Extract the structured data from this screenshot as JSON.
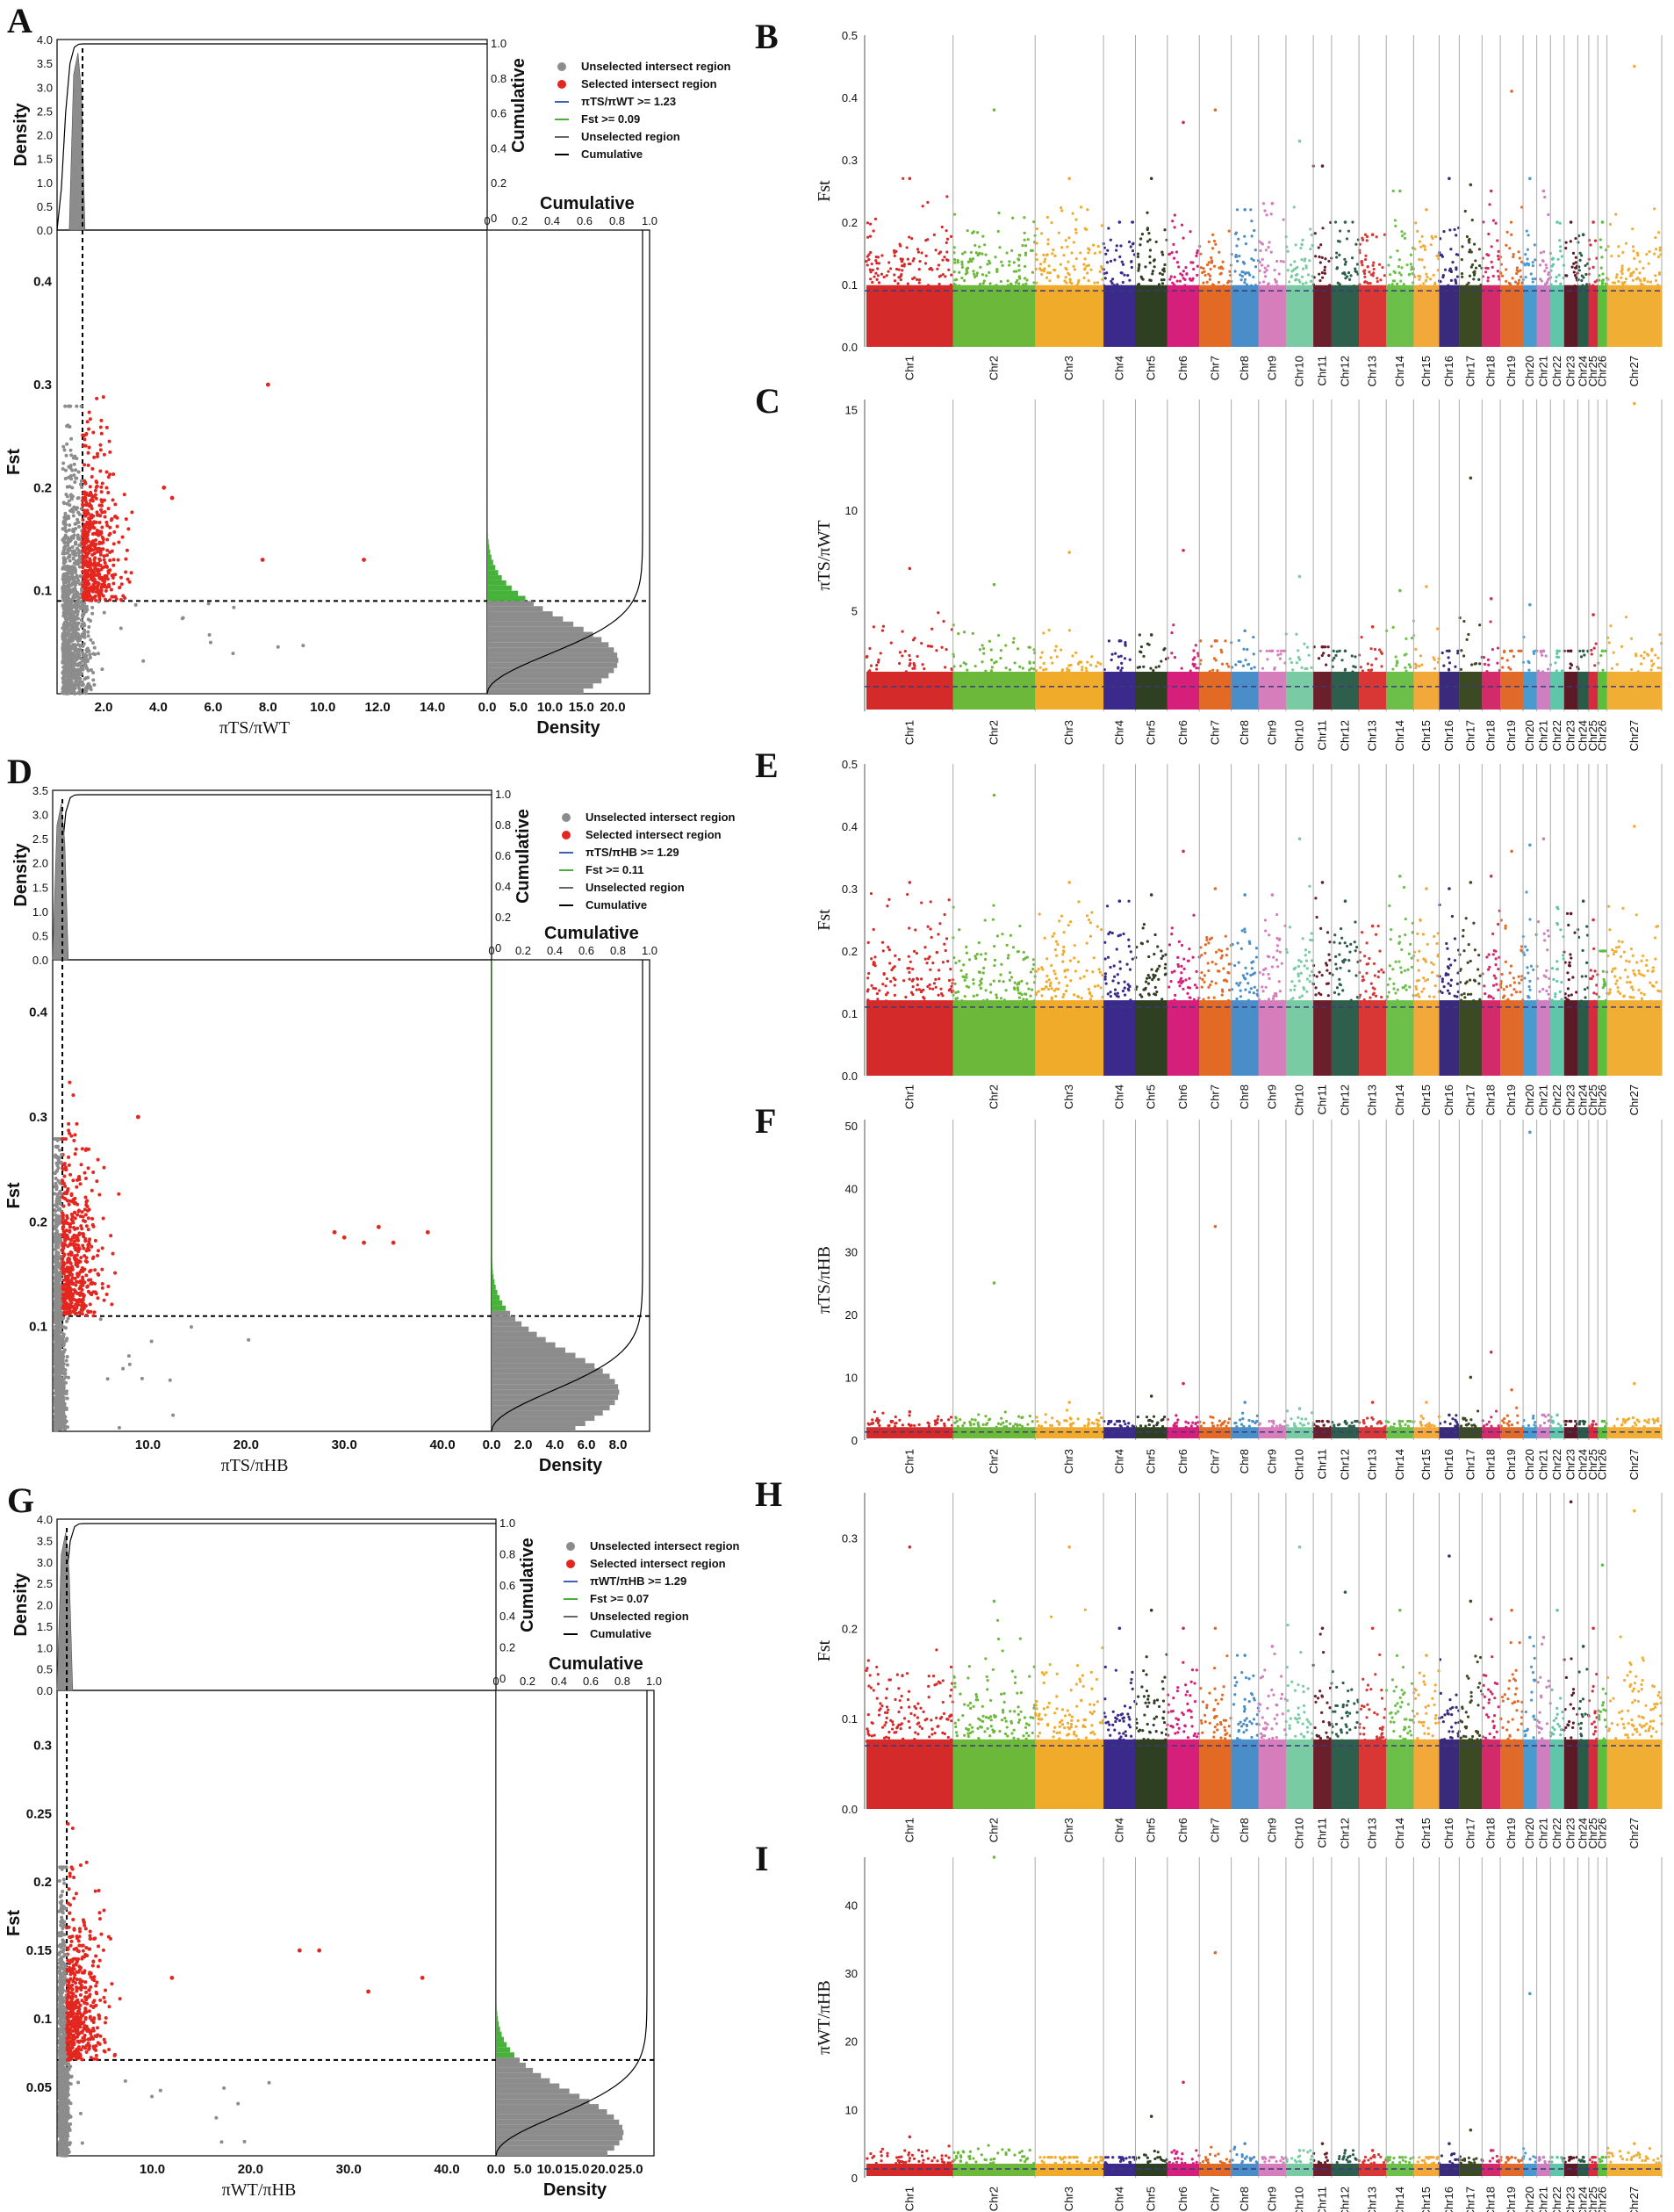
{
  "figure": {
    "panels_left": [
      {
        "letter": "A",
        "legend": [
          "Unselected intersect region",
          "Selected intersect region",
          "πTS/πWT >= 1.23",
          "Fst >= 0.09",
          "Unselected region",
          "Cumulative"
        ],
        "top_density_label": "Density",
        "top_density_ticks": [
          "4.0",
          "3.5",
          "3.0",
          "2.5",
          "2.0",
          "1.5",
          "1.0",
          "0.5",
          "0.0"
        ],
        "cumulative_label": "Cumulative",
        "cum_ticks": [
          "1.0",
          "0.8",
          "0.6",
          "0.4",
          "0.2",
          "0"
        ],
        "cum_x_label": "Cumulative",
        "cum_x_ticks": [
          "0",
          "0.2",
          "0.4",
          "0.6",
          "0.8",
          "1.0"
        ],
        "fst_label": "Fst",
        "fst_ticks": [
          "0.4",
          "0.3",
          "0.2",
          "0.1"
        ],
        "x_ticks": [
          "2.0",
          "4.0",
          "6.0",
          "8.0",
          "10.0",
          "12.0",
          "14.0"
        ],
        "x_label": "πTS/πWT",
        "density_x_label": "Density",
        "density_x_ticks": [
          "0.0",
          "5.0",
          "10.0",
          "15.0",
          "20.0"
        ]
      },
      {
        "letter": "D",
        "legend": [
          "Unselected intersect region",
          "Selected intersect region",
          "πTS/πHB >= 1.29",
          "Fst >= 0.11",
          "Unselected region",
          "Cumulative"
        ],
        "top_density_label": "Density",
        "top_density_ticks": [
          "3.5",
          "3.0",
          "2.5",
          "2.0",
          "1.5",
          "1.0",
          "0.5",
          "0.0"
        ],
        "cumulative_label": "Cumulative",
        "cum_ticks": [
          "1.0",
          "0.8",
          "0.6",
          "0.4",
          "0.2",
          "0"
        ],
        "cum_x_label": "Cumulative",
        "cum_x_ticks": [
          "0",
          "0.2",
          "0.4",
          "0.6",
          "0.8",
          "1.0"
        ],
        "fst_label": "Fst",
        "fst_ticks": [
          "0.4",
          "0.3",
          "0.2",
          "0.1"
        ],
        "x_ticks": [
          "10.0",
          "20.0",
          "30.0",
          "40.0"
        ],
        "x_label": "πTS/πHB",
        "density_x_label": "Density",
        "density_x_ticks": [
          "0.0",
          "2.0",
          "4.0",
          "6.0",
          "8.0"
        ]
      },
      {
        "letter": "G",
        "legend": [
          "Unselected intersect region",
          "Selected intersect region",
          "πWT/πHB >= 1.29",
          "Fst >= 0.07",
          "Unselected region",
          "Cumulative"
        ],
        "top_density_label": "Density",
        "top_density_ticks": [
          "4.0",
          "3.5",
          "3.0",
          "2.5",
          "2.0",
          "1.5",
          "1.0",
          "0.5",
          "0.0"
        ],
        "cumulative_label": "Cumulative",
        "cum_ticks": [
          "1.0",
          "0.8",
          "0.6",
          "0.4",
          "0.2",
          "0"
        ],
        "cum_x_label": "Cumulative",
        "cum_x_ticks": [
          "0",
          "0.2",
          "0.4",
          "0.6",
          "0.8",
          "1.0"
        ],
        "fst_label": "Fst",
        "fst_ticks": [
          "0.3",
          "0.25",
          "0.2",
          "0.15",
          "0.1",
          "0.05"
        ],
        "x_ticks": [
          "10.0",
          "20.0",
          "30.0",
          "40.0"
        ],
        "x_label": "πWT/πHB",
        "density_x_label": "Density",
        "density_x_ticks": [
          "0.0",
          "5.0",
          "10.0",
          "15.0",
          "20.0",
          "25.0"
        ]
      }
    ],
    "panels_right": [
      {
        "letter": "B",
        "y_label": "Fst",
        "y_ticks": [
          "0.5",
          "0.4",
          "0.3",
          "0.2",
          "0.1",
          "0.0"
        ]
      },
      {
        "letter": "C",
        "y_label": "πTS/πWT",
        "y_ticks": [
          "15",
          "10",
          "5"
        ]
      },
      {
        "letter": "E",
        "y_label": "Fst",
        "y_ticks": [
          "0.5",
          "0.4",
          "0.3",
          "0.2",
          "0.1",
          "0.0"
        ]
      },
      {
        "letter": "F",
        "y_label": "πTS/πHB",
        "y_ticks": [
          "50",
          "40",
          "30",
          "20",
          "10",
          "0"
        ]
      },
      {
        "letter": "H",
        "y_label": "Fst",
        "y_ticks": [
          "0.3",
          "0.2",
          "0.1",
          "0.0"
        ]
      },
      {
        "letter": "I",
        "y_label": "πWT/πHB",
        "y_ticks": [
          "40",
          "30",
          "20",
          "10",
          "0"
        ]
      }
    ],
    "chromosomes": [
      "Chr1",
      "Chr2",
      "Chr3",
      "Chr4",
      "Chr5",
      "Chr6",
      "Chr7",
      "Chr8",
      "Chr9",
      "Chr10",
      "Chr11",
      "Chr12",
      "Chr13",
      "Chr14",
      "Chr15",
      "Chr16",
      "Chr17",
      "Chr18",
      "Chr19",
      "Chr20",
      "Chr21",
      "Chr22",
      "Chr23",
      "Chr24",
      "Chr25",
      "Chr26",
      "Chr27"
    ],
    "chr_colors": [
      "#d42a2a",
      "#6cb83a",
      "#f0ab2a",
      "#3b2a8c",
      "#2f3f22",
      "#d51f7a",
      "#e26a25",
      "#4a8ec9",
      "#d67ebb",
      "#79cba3",
      "#6b1f2a",
      "#2e5f4d",
      "#d93636",
      "#6cc04a",
      "#f2a93a",
      "#3a2a7c",
      "#3b4a23",
      "#d32a6a",
      "#e06a2a",
      "#4a9ad0",
      "#cf7fbf",
      "#5fc7a8",
      "#5c1a26",
      "#2a5a48",
      "#d62a3e",
      "#5cbf3c",
      "#f0ae35"
    ],
    "colors": {
      "unselected": "#8c8c8c",
      "selected": "#e3261f",
      "green": "#46b23a",
      "blue": "#3b62b5",
      "black": "#000000"
    }
  },
  "chart_data": [
    {
      "panel": "A",
      "type": "scatter",
      "title": "",
      "xlabel": "πTS/πWT",
      "ylabel": "Fst",
      "xlim": [
        0,
        16
      ],
      "ylim": [
        0,
        0.45
      ],
      "thresholds": {
        "x": 1.23,
        "y": 0.09
      },
      "highlight_points": [
        [
          8.0,
          0.3
        ],
        [
          11.5,
          0.13
        ],
        [
          4.2,
          0.2
        ],
        [
          4.5,
          0.19
        ],
        [
          7.8,
          0.13
        ]
      ]
    },
    {
      "panel": "D",
      "type": "scatter",
      "title": "",
      "xlabel": "πTS/πHB",
      "ylabel": "Fst",
      "xlim": [
        0,
        45
      ],
      "ylim": [
        0,
        0.45
      ],
      "thresholds": {
        "x": 1.29,
        "y": 0.11
      },
      "highlight_points": [
        [
          9.0,
          0.3
        ],
        [
          29.0,
          0.19
        ],
        [
          30.0,
          0.185
        ],
        [
          32.0,
          0.18
        ],
        [
          33.5,
          0.195
        ],
        [
          35.0,
          0.18
        ],
        [
          38.5,
          0.19
        ]
      ]
    },
    {
      "panel": "G",
      "type": "scatter",
      "title": "",
      "xlabel": "πWT/πHB",
      "ylabel": "Fst",
      "xlim": [
        0,
        45
      ],
      "ylim": [
        0,
        0.33
      ],
      "thresholds": {
        "x": 1.29,
        "y": 0.07
      },
      "highlight_points": [
        [
          25.0,
          0.15
        ],
        [
          27.0,
          0.15
        ],
        [
          37.5,
          0.13
        ],
        [
          12.0,
          0.13
        ],
        [
          32.0,
          0.12
        ]
      ]
    },
    {
      "panel": "B",
      "type": "scatter",
      "title": "",
      "xlabel": "",
      "ylabel": "Fst",
      "ylim": [
        0,
        0.5
      ],
      "threshold": 0.09,
      "peaks": [
        0.27,
        0.38,
        0.27,
        0.2,
        0.27,
        0.36,
        0.38,
        0.22,
        0.23,
        0.33,
        0.29,
        0.2,
        0.18,
        0.25,
        0.22,
        0.27,
        0.26,
        0.25,
        0.41,
        0.27,
        0.25,
        0.2,
        0.2,
        0.18,
        0.2,
        0.2,
        0.45
      ]
    },
    {
      "panel": "C",
      "type": "scatter",
      "title": "",
      "xlabel": "",
      "ylabel": "πTS/πWT",
      "ylim": [
        0,
        15.5
      ],
      "threshold": 1.23,
      "peaks": [
        7.1,
        6.3,
        7.9,
        3.5,
        3.8,
        8.0,
        3.5,
        4.0,
        3.0,
        6.7,
        3.2,
        3.0,
        4.2,
        6.0,
        6.2,
        3.0,
        11.6,
        5.6,
        3.0,
        5.3,
        3.0,
        3.0,
        3.0,
        3.0,
        4.8,
        3.0,
        15.3
      ]
    },
    {
      "panel": "E",
      "type": "scatter",
      "title": "",
      "xlabel": "",
      "ylabel": "Fst",
      "ylim": [
        0,
        0.5
      ],
      "threshold": 0.11,
      "peaks": [
        0.31,
        0.45,
        0.31,
        0.28,
        0.29,
        0.36,
        0.3,
        0.29,
        0.29,
        0.38,
        0.31,
        0.28,
        0.24,
        0.32,
        0.3,
        0.3,
        0.31,
        0.32,
        0.36,
        0.37,
        0.38,
        0.27,
        0.26,
        0.28,
        0.25,
        0.2,
        0.4
      ]
    },
    {
      "panel": "F",
      "type": "scatter",
      "title": "",
      "xlabel": "",
      "ylabel": "πTS/πHB",
      "ylim": [
        0,
        50
      ],
      "threshold": 1.29,
      "peaks": [
        4.5,
        25,
        6,
        3,
        7,
        9,
        34,
        6,
        3,
        5,
        3,
        3,
        6,
        3,
        6,
        4,
        10,
        14,
        8,
        49,
        4,
        4,
        3,
        3,
        3,
        3,
        9
      ]
    },
    {
      "panel": "H",
      "type": "scatter",
      "title": "",
      "xlabel": "",
      "ylabel": "Fst",
      "ylim": [
        0,
        0.35
      ],
      "threshold": 0.07,
      "peaks": [
        0.29,
        0.23,
        0.29,
        0.2,
        0.22,
        0.2,
        0.2,
        0.17,
        0.18,
        0.29,
        0.2,
        0.24,
        0.2,
        0.22,
        0.17,
        0.28,
        0.23,
        0.21,
        0.22,
        0.19,
        0.19,
        0.22,
        0.34,
        0.18,
        0.2,
        0.27,
        0.33
      ]
    },
    {
      "panel": "I",
      "type": "scatter",
      "title": "",
      "xlabel": "",
      "ylabel": "πWT/πHB",
      "ylim": [
        0,
        47
      ],
      "threshold": 1.29,
      "peaks": [
        6,
        47,
        3,
        3,
        9,
        14,
        33,
        5,
        3,
        4,
        5,
        4,
        4,
        3,
        3,
        5,
        7,
        4,
        3,
        27,
        3,
        3,
        3,
        3,
        3,
        3,
        5
      ]
    }
  ]
}
